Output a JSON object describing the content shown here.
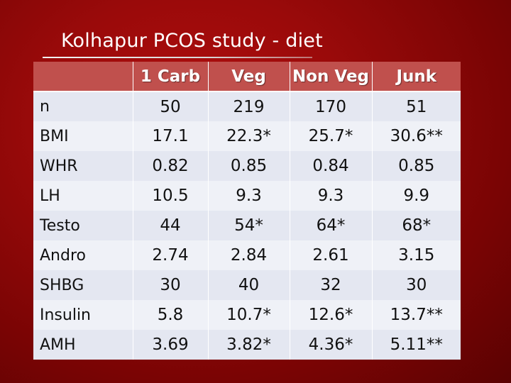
{
  "title": "Kolhapur PCOS study - diet",
  "table": {
    "headers": [
      "",
      "1 Carb",
      "Veg",
      "Non Veg",
      "Junk"
    ],
    "rows": [
      {
        "label": "n",
        "values": [
          "50",
          "219",
          "170",
          "51"
        ]
      },
      {
        "label": "BMI",
        "values": [
          "17.1",
          "22.3*",
          "25.7*",
          "30.6**"
        ]
      },
      {
        "label": "WHR",
        "values": [
          "0.82",
          "0.85",
          "0.84",
          "0.85"
        ]
      },
      {
        "label": "LH",
        "values": [
          "10.5",
          "9.3",
          "9.3",
          "9.9"
        ]
      },
      {
        "label": "Testo",
        "values": [
          "44",
          "54*",
          "64*",
          "68*"
        ]
      },
      {
        "label": "Andro",
        "values": [
          "2.74",
          "2.84",
          "2.61",
          "3.15"
        ]
      },
      {
        "label": "SHBG",
        "values": [
          "30",
          "40",
          "32",
          "30"
        ]
      },
      {
        "label": "Insulin",
        "values": [
          "5.8",
          "10.7*",
          "12.6*",
          "13.7**"
        ]
      },
      {
        "label": "AMH",
        "values": [
          "3.69",
          "3.82*",
          "4.36*",
          "5.11**"
        ]
      }
    ]
  },
  "colors": {
    "background": "#9a0a0a",
    "header_fill": "#c0504d",
    "row_fill_odd": "#e4e7f1",
    "row_fill_even": "#eff1f7"
  }
}
